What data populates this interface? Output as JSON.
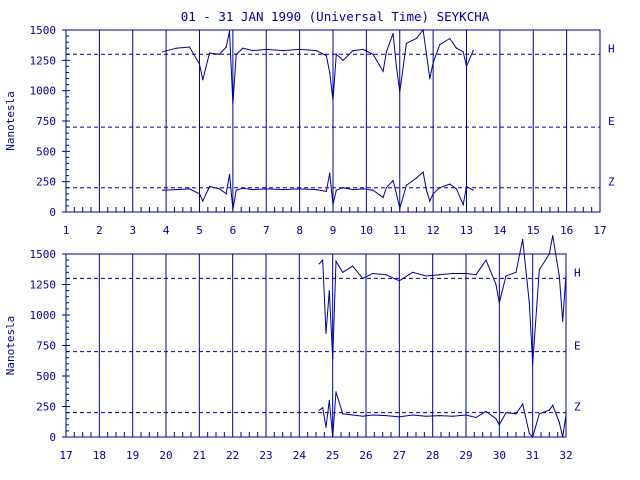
{
  "title": "01 - 31 JAN 1990 (Universal Time) SEYKCHA",
  "colors": {
    "axis": "#0000a0",
    "trace": "#0000a0",
    "background": "#ffffff"
  },
  "chart_data": [
    {
      "type": "line",
      "panel": "top",
      "ylabel": "Nanotesla",
      "ylim": [
        0,
        1500
      ],
      "yticks": [
        "0",
        "250",
        "500",
        "750",
        "1000",
        "1250",
        "1500"
      ],
      "xlim": [
        1,
        17
      ],
      "xticks": [
        "1",
        "2",
        "3",
        "4",
        "5",
        "6",
        "7",
        "8",
        "9",
        "10",
        "11",
        "12",
        "13",
        "14",
        "15",
        "16",
        "17"
      ],
      "reference_lines": [
        {
          "name": "H",
          "value": 1300
        },
        {
          "name": "E",
          "value": 700
        },
        {
          "name": "Z",
          "value": 200
        }
      ],
      "series": [
        {
          "name": "H",
          "x": [
            3.9,
            4.3,
            4.7,
            5.0,
            5.1,
            5.3,
            5.6,
            5.8,
            5.9,
            6.0,
            6.1,
            6.3,
            6.6,
            7.0,
            7.5,
            8.0,
            8.5,
            8.8,
            8.9,
            9.0,
            9.1,
            9.3,
            9.6,
            9.9,
            10.2,
            10.5,
            10.6,
            10.8,
            10.9,
            11.0,
            11.2,
            11.5,
            11.7,
            11.8,
            11.9,
            12.0,
            12.2,
            12.5,
            12.7,
            12.9,
            13.0,
            13.2
          ],
          "values": [
            1320,
            1350,
            1360,
            1220,
            1090,
            1310,
            1300,
            1360,
            1490,
            890,
            1300,
            1350,
            1330,
            1340,
            1330,
            1340,
            1330,
            1290,
            1150,
            920,
            1300,
            1250,
            1330,
            1340,
            1300,
            1160,
            1320,
            1470,
            1200,
            990,
            1390,
            1430,
            1500,
            1300,
            1100,
            1230,
            1380,
            1430,
            1350,
            1320,
            1200,
            1330
          ]
        },
        {
          "name": "Z",
          "x": [
            3.9,
            4.3,
            4.7,
            5.0,
            5.1,
            5.3,
            5.6,
            5.8,
            5.9,
            6.0,
            6.1,
            6.3,
            6.6,
            7.0,
            7.5,
            8.0,
            8.5,
            8.8,
            8.9,
            9.0,
            9.1,
            9.3,
            9.6,
            9.9,
            10.2,
            10.5,
            10.6,
            10.8,
            10.9,
            11.0,
            11.2,
            11.5,
            11.7,
            11.8,
            11.9,
            12.0,
            12.2,
            12.5,
            12.7,
            12.9,
            13.0,
            13.2
          ],
          "values": [
            180,
            185,
            190,
            150,
            90,
            210,
            190,
            150,
            310,
            20,
            180,
            195,
            185,
            190,
            185,
            190,
            185,
            170,
            320,
            60,
            180,
            200,
            185,
            190,
            180,
            120,
            200,
            260,
            150,
            30,
            220,
            280,
            330,
            180,
            90,
            150,
            200,
            230,
            190,
            60,
            210,
            180
          ]
        }
      ]
    },
    {
      "type": "line",
      "panel": "bottom",
      "ylabel": "Nanotesla",
      "ylim": [
        0,
        1500
      ],
      "yticks": [
        "0",
        "250",
        "500",
        "750",
        "1000",
        "1250",
        "1500"
      ],
      "xlim": [
        17,
        32
      ],
      "xticks": [
        "17",
        "18",
        "19",
        "20",
        "21",
        "22",
        "23",
        "24",
        "25",
        "26",
        "27",
        "28",
        "29",
        "30",
        "31",
        "32"
      ],
      "reference_lines": [
        {
          "name": "H",
          "value": 1300
        },
        {
          "name": "E",
          "value": 700
        },
        {
          "name": "Z",
          "value": 200
        }
      ],
      "series": [
        {
          "name": "H",
          "x": [
            24.6,
            24.7,
            24.8,
            24.9,
            25.0,
            25.1,
            25.3,
            25.6,
            25.9,
            26.2,
            26.6,
            27.0,
            27.4,
            27.8,
            28.2,
            28.6,
            29.0,
            29.3,
            29.6,
            29.9,
            30.0,
            30.2,
            30.5,
            30.7,
            30.9,
            31.0,
            31.2,
            31.5,
            31.6,
            31.8,
            31.9,
            32.0
          ],
          "values": [
            1420,
            1450,
            850,
            1200,
            640,
            1440,
            1350,
            1400,
            1300,
            1340,
            1330,
            1280,
            1350,
            1320,
            1330,
            1340,
            1340,
            1330,
            1450,
            1250,
            1100,
            1320,
            1350,
            1620,
            1100,
            600,
            1370,
            1500,
            1650,
            1320,
            950,
            1330
          ]
        },
        {
          "name": "Z",
          "x": [
            24.6,
            24.7,
            24.8,
            24.9,
            25.0,
            25.1,
            25.3,
            25.6,
            25.9,
            26.2,
            26.6,
            27.0,
            27.4,
            27.8,
            28.2,
            28.6,
            29.0,
            29.3,
            29.6,
            29.9,
            30.0,
            30.2,
            30.5,
            30.7,
            30.9,
            31.0,
            31.2,
            31.5,
            31.6,
            31.8,
            31.9,
            32.0
          ],
          "values": [
            220,
            240,
            80,
            300,
            0,
            370,
            190,
            180,
            170,
            180,
            175,
            165,
            180,
            170,
            175,
            170,
            180,
            160,
            210,
            150,
            100,
            200,
            190,
            270,
            30,
            0,
            190,
            220,
            260,
            120,
            0,
            180
          ]
        }
      ]
    }
  ]
}
